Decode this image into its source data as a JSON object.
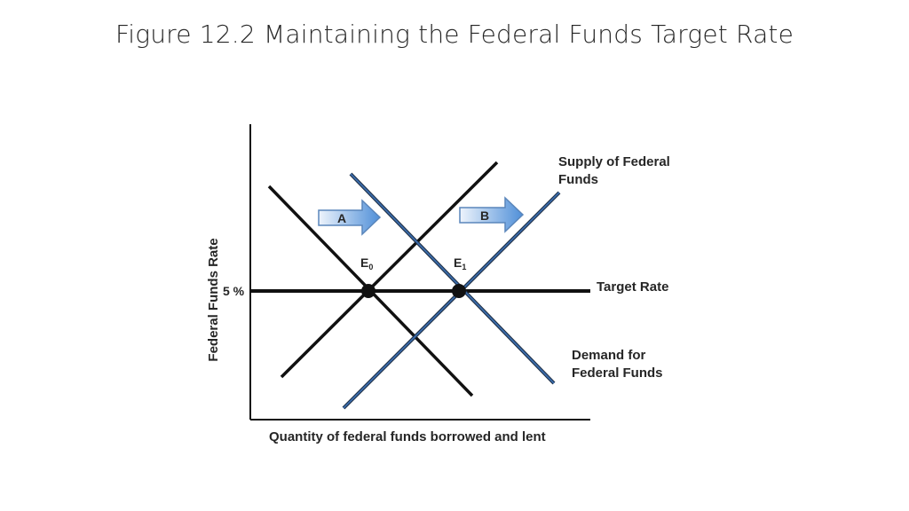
{
  "title": "Figure 12.2 Maintaining the Federal Funds Target Rate",
  "axes": {
    "ylabel": "Federal Funds  Rate",
    "xlabel": "Quantity of federal funds borrowed and lent",
    "y_tick": "5 %"
  },
  "curves": {
    "supply_line1": "Supply of Federal",
    "supply_line2": "Funds",
    "target": "Target Rate",
    "demand_line1": "Demand for",
    "demand_line2": "Federal Funds"
  },
  "points": {
    "e0_base": "E",
    "e0_sub": "0",
    "e1_base": "E",
    "e1_sub": "1"
  },
  "arrows": {
    "a": "A",
    "b": "B"
  },
  "colors": {
    "black_lines": "#111111",
    "blue_lines": "#2e5387",
    "arrow_fill_light": "#eef4fc",
    "arrow_fill_dark": "#4f8fd8",
    "arrow_stroke": "#5a86bb"
  }
}
